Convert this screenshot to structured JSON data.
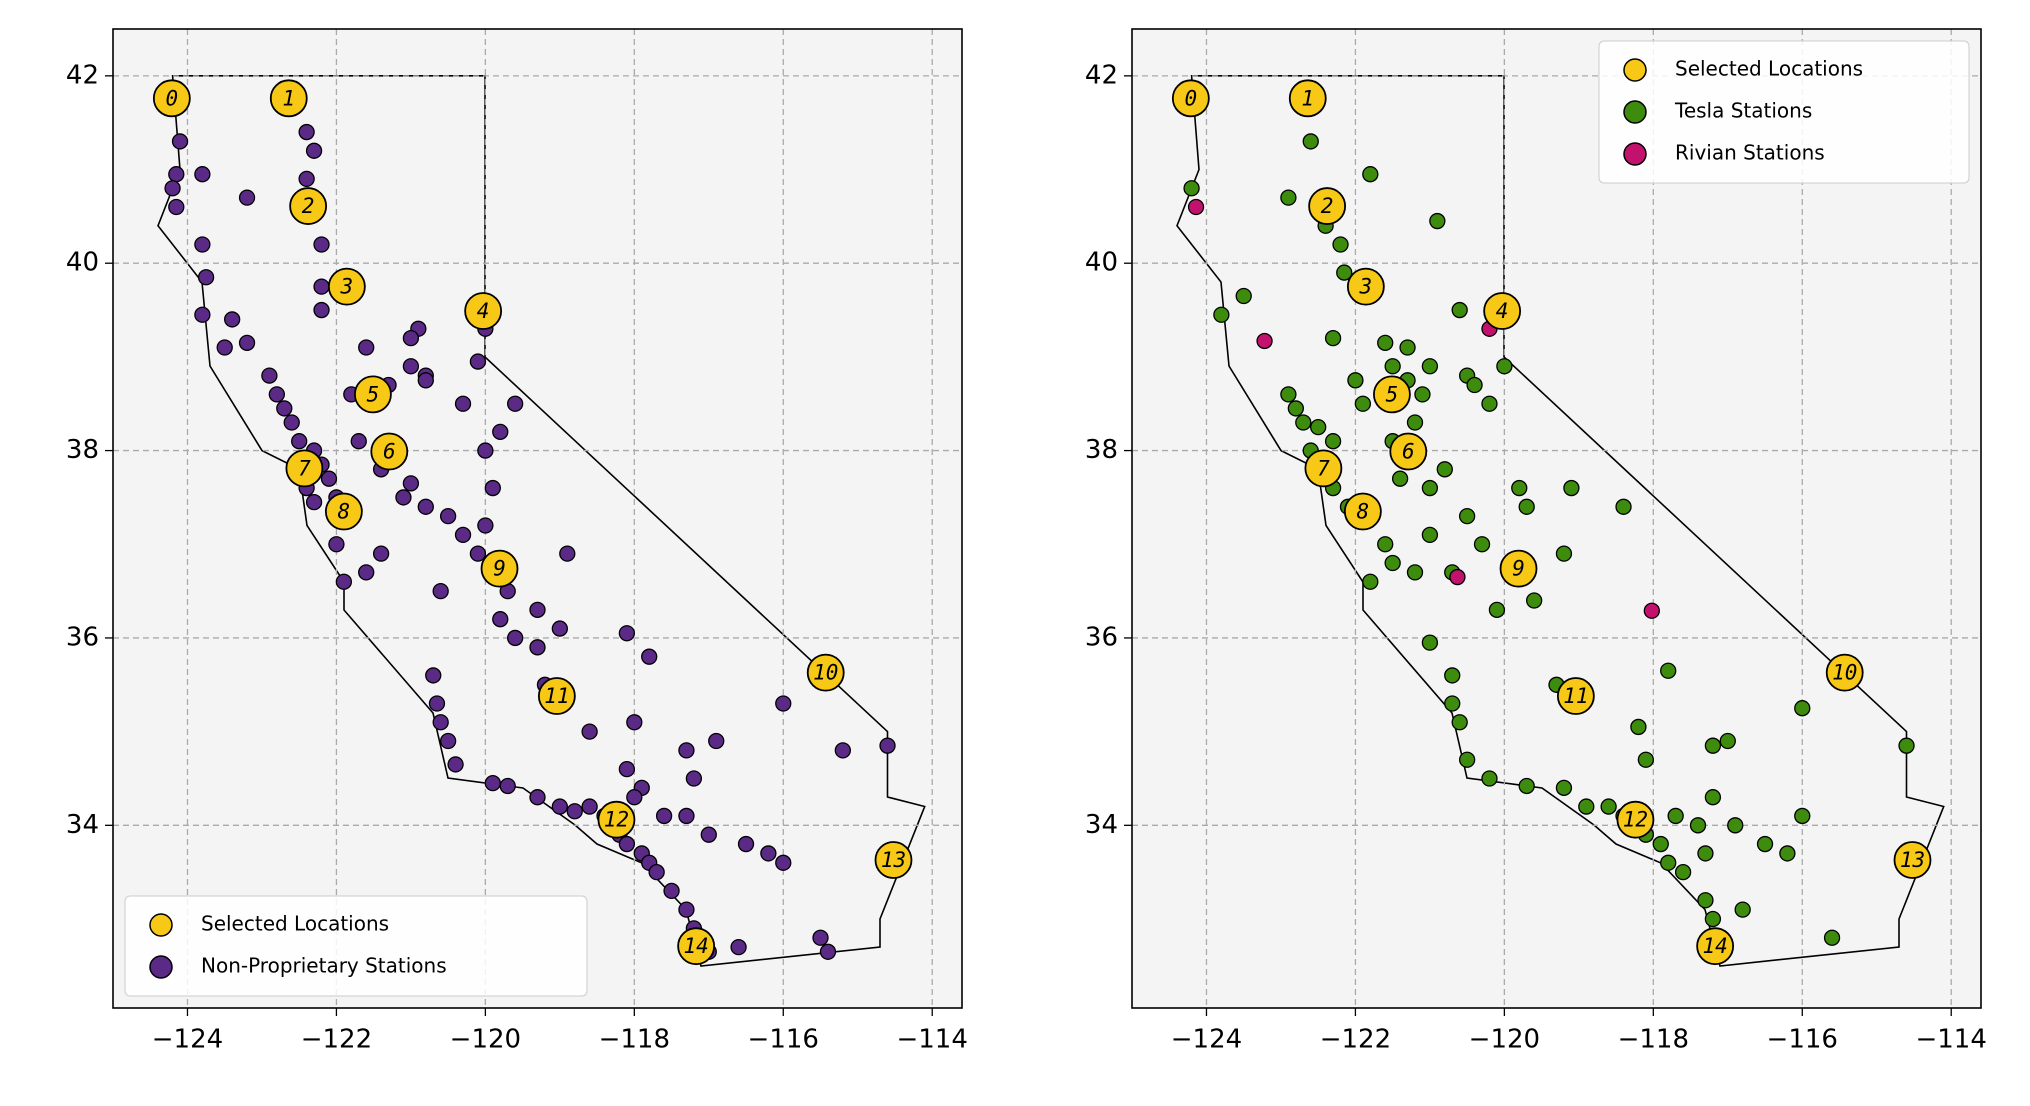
{
  "chart_data": [
    {
      "type": "scatter",
      "xlim": [
        -125,
        -113.6
      ],
      "ylim": [
        32.05,
        42.5
      ],
      "xticks": [
        {
          "value": -124,
          "label": "−124"
        },
        {
          "value": -122,
          "label": "−122"
        },
        {
          "value": -120,
          "label": "−120"
        },
        {
          "value": -118,
          "label": "−118"
        },
        {
          "value": -116,
          "label": "−116"
        },
        {
          "value": -114,
          "label": "−114"
        }
      ],
      "yticks": [
        34,
        36,
        38,
        40,
        42
      ],
      "grid": true,
      "legend": "lower left",
      "series": [
        {
          "name": "Non-Proprietary Stations",
          "color": "#5b2a86",
          "x": [
            -124.1,
            -124.15,
            -124.2,
            -124.15,
            -123.8,
            -123.2,
            -122.4,
            -122.3,
            -122.4,
            -122.2,
            -122.2,
            -122.2,
            -123.8,
            -123.75,
            -123.8,
            -123.4,
            -123.5,
            -123.2,
            -122.9,
            -122.8,
            -122.7,
            -122.6,
            -122.5,
            -122.3,
            -122.2,
            -122.1,
            -122.0,
            -121.9,
            -121.8,
            -122.4,
            -122.3,
            -122.0,
            -121.9,
            -121.6,
            -121.4,
            -121.1,
            -121.0,
            -120.8,
            -120.5,
            -120.3,
            -120.1,
            -119.8,
            -119.7,
            -119.3,
            -119.0,
            -120.6,
            -120.7,
            -120.65,
            -120.6,
            -120.5,
            -120.4,
            -119.9,
            -119.7,
            -119.3,
            -119.0,
            -118.8,
            -118.6,
            -118.4,
            -118.3,
            -118.2,
            -118.1,
            -117.9,
            -117.8,
            -117.7,
            -117.5,
            -117.3,
            -117.2,
            -117.1,
            -117.0,
            -117.6,
            -117.3,
            -117.0,
            -116.5,
            -116.2,
            -117.9,
            -118.1,
            -117.3,
            -116.9,
            -116.0,
            -115.4,
            -115.2,
            -114.6,
            -115.5,
            -115.4,
            -118.0,
            -118.1,
            -117.8,
            -119.0,
            -119.2,
            -119.3,
            -120.0,
            -119.9,
            -120.0,
            -120.3,
            -120.8,
            -121.0,
            -121.3,
            -121.5,
            -121.8,
            -120.9,
            -121.0,
            -120.0,
            -120.1,
            -119.8,
            -121.6,
            -121.7,
            -121.4,
            -120.8,
            -118.9,
            -119.6,
            -119.6,
            -119.8,
            -118.6,
            -118.0,
            -117.2,
            -116.0,
            -116.6
          ],
          "y": [
            41.3,
            40.95,
            40.8,
            40.6,
            40.95,
            40.7,
            41.4,
            41.2,
            40.9,
            40.2,
            39.75,
            39.5,
            40.2,
            39.85,
            39.45,
            39.4,
            39.1,
            39.15,
            38.8,
            38.6,
            38.45,
            38.3,
            38.1,
            38.0,
            37.85,
            37.7,
            37.5,
            37.4,
            37.3,
            37.6,
            37.45,
            37.0,
            36.6,
            36.7,
            36.9,
            37.5,
            37.65,
            37.4,
            37.3,
            37.1,
            36.9,
            36.8,
            36.5,
            36.3,
            36.1,
            36.5,
            35.6,
            35.3,
            35.1,
            34.9,
            34.65,
            34.45,
            34.42,
            34.3,
            34.2,
            34.15,
            34.2,
            34.1,
            34.0,
            33.9,
            33.8,
            33.7,
            33.6,
            33.5,
            33.3,
            33.1,
            32.9,
            32.8,
            32.65,
            34.1,
            34.1,
            33.9,
            33.8,
            33.7,
            34.4,
            34.6,
            34.8,
            34.9,
            35.3,
            35.6,
            34.8,
            34.85,
            32.8,
            32.65,
            35.1,
            36.05,
            35.8,
            35.3,
            35.5,
            35.9,
            38.0,
            37.6,
            37.2,
            38.5,
            38.8,
            38.9,
            38.7,
            38.5,
            38.6,
            39.3,
            39.2,
            39.3,
            38.95,
            38.2,
            39.1,
            38.1,
            37.8,
            38.75,
            36.9,
            38.5,
            36.0,
            36.2,
            35.0,
            34.3,
            34.5,
            33.6,
            32.7
          ]
        },
        {
          "name": "Selected Locations",
          "color": "#f7c815",
          "x": [
            -124.21,
            -122.64,
            -122.38,
            -121.86,
            -120.03,
            -121.51,
            -121.29,
            -122.43,
            -121.9,
            -119.81,
            -115.43,
            -119.04,
            -118.24,
            -114.52,
            -117.17
          ],
          "y": [
            41.76,
            41.76,
            40.61,
            39.75,
            39.49,
            38.6,
            37.99,
            37.81,
            37.35,
            36.74,
            35.63,
            35.38,
            34.06,
            33.63,
            32.71
          ],
          "labels": [
            "0",
            "1",
            "2",
            "3",
            "4",
            "5",
            "6",
            "7",
            "8",
            "9",
            "10",
            "11",
            "12",
            "13",
            "14"
          ]
        }
      ]
    },
    {
      "type": "scatter",
      "xlim": [
        -125,
        -113.6
      ],
      "ylim": [
        32.05,
        42.5
      ],
      "xticks": [
        {
          "value": -124,
          "label": "−124"
        },
        {
          "value": -122,
          "label": "−122"
        },
        {
          "value": -120,
          "label": "−120"
        },
        {
          "value": -118,
          "label": "−118"
        },
        {
          "value": -116,
          "label": "−116"
        },
        {
          "value": -114,
          "label": "−114"
        }
      ],
      "yticks": [
        34,
        36,
        38,
        40,
        42
      ],
      "grid": true,
      "legend": "upper right",
      "series": [
        {
          "name": "Tesla Stations",
          "color": "#3d8c0e",
          "x": [
            -124.2,
            -122.6,
            -121.8,
            -122.9,
            -122.4,
            -122.2,
            -122.15,
            -123.5,
            -123.8,
            -121.5,
            -120.6,
            -120.9,
            -120.0,
            -122.3,
            -121.6,
            -121.3,
            -121.0,
            -120.5,
            -121.3,
            -121.1,
            -121.9,
            -122.8,
            -122.7,
            -122.5,
            -122.3,
            -122.6,
            -122.4,
            -122.3,
            -122.1,
            -121.9,
            -121.4,
            -121.0,
            -120.8,
            -120.5,
            -120.3,
            -119.8,
            -119.7,
            -119.1,
            -118.4,
            -119.7,
            -119.6,
            -119.3,
            -120.1,
            -120.7,
            -121.2,
            -121.8,
            -121.0,
            -120.7,
            -120.7,
            -120.6,
            -120.5,
            -120.2,
            -119.7,
            -119.2,
            -118.9,
            -118.6,
            -118.4,
            -118.2,
            -118.1,
            -117.9,
            -117.8,
            -117.6,
            -117.3,
            -117.2,
            -117.15,
            -117.7,
            -117.4,
            -117.2,
            -116.9,
            -116.5,
            -116.2,
            -116.0,
            -117.3,
            -116.8,
            -115.6,
            -114.6,
            -116.0,
            -117.0,
            -117.2,
            -118.1,
            -118.2,
            -117.8,
            -119.2,
            -121.0,
            -121.6,
            -121.5,
            -122.9,
            -122.0,
            -120.2,
            -120.4,
            -121.2,
            -121.5
          ],
          "y": [
            40.8,
            41.3,
            40.95,
            40.7,
            40.4,
            40.2,
            39.9,
            39.65,
            39.45,
            38.9,
            39.5,
            40.45,
            38.9,
            39.2,
            39.15,
            39.1,
            38.9,
            38.8,
            38.75,
            38.6,
            38.5,
            38.45,
            38.3,
            38.25,
            38.1,
            38.0,
            37.8,
            37.6,
            37.4,
            37.3,
            37.7,
            37.6,
            37.8,
            37.3,
            37.0,
            37.6,
            37.4,
            37.6,
            37.4,
            36.8,
            36.4,
            35.5,
            36.3,
            36.7,
            36.7,
            36.6,
            35.95,
            35.6,
            35.3,
            35.1,
            34.7,
            34.5,
            34.42,
            34.4,
            34.2,
            34.2,
            34.1,
            34.0,
            33.9,
            33.8,
            33.6,
            33.5,
            33.2,
            33.0,
            32.8,
            34.1,
            34.0,
            34.3,
            34.0,
            33.8,
            33.7,
            34.1,
            33.7,
            33.1,
            32.8,
            34.85,
            35.25,
            34.9,
            34.85,
            34.7,
            35.05,
            35.65,
            36.9,
            37.1,
            37.0,
            36.8,
            38.6,
            38.75,
            38.5,
            38.7,
            38.3,
            38.1
          ]
        },
        {
          "name": "Rivian Stations",
          "color": "#c2126e",
          "x": [
            -124.14,
            -123.22,
            -120.2,
            -120.63,
            -118.02
          ],
          "y": [
            40.6,
            39.17,
            39.3,
            36.65,
            36.29
          ]
        },
        {
          "name": "Selected Locations",
          "color": "#f7c815",
          "x": [
            -124.21,
            -122.64,
            -122.38,
            -121.86,
            -120.03,
            -121.51,
            -121.29,
            -122.43,
            -121.9,
            -119.81,
            -115.43,
            -119.04,
            -118.24,
            -114.52,
            -117.17
          ],
          "y": [
            41.76,
            41.76,
            40.61,
            39.75,
            39.49,
            38.6,
            37.99,
            37.81,
            37.35,
            36.74,
            35.63,
            35.38,
            34.06,
            33.63,
            32.71
          ],
          "labels": [
            "0",
            "1",
            "2",
            "3",
            "4",
            "5",
            "6",
            "7",
            "8",
            "9",
            "10",
            "11",
            "12",
            "13",
            "14"
          ]
        }
      ]
    }
  ]
}
